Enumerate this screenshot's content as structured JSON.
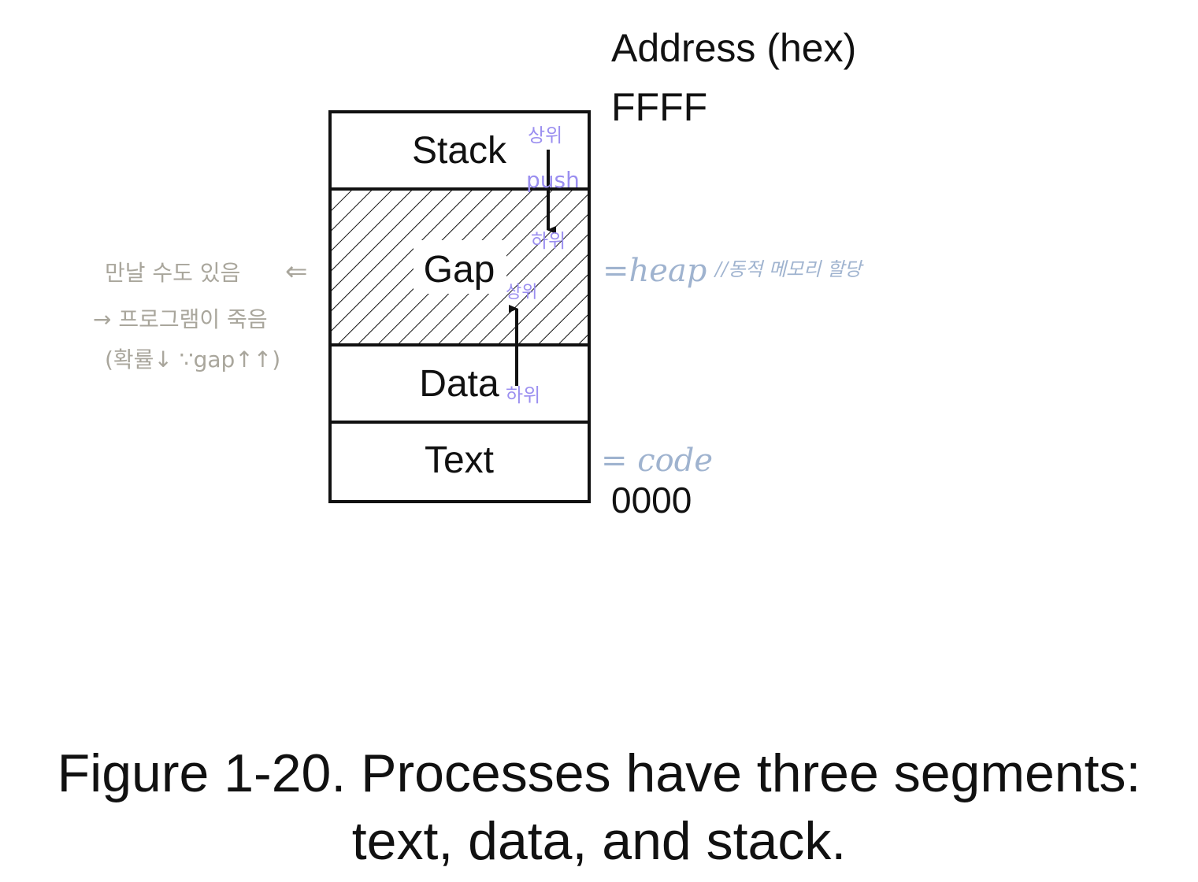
{
  "header": {
    "address_label": "Address (hex)",
    "top_address": "FFFF",
    "bottom_address": "0000"
  },
  "segments": {
    "stack": "Stack",
    "gap": "Gap",
    "data": "Data",
    "text": "Text"
  },
  "annotations": {
    "stack_top": "상위",
    "push": "push",
    "stack_bottom": "하위",
    "data_top": "상위",
    "data_bottom": "하위",
    "heap": "=heap",
    "heap_note": "//동적 메모리 할당",
    "code": "= code",
    "left_line1": "만날 수도 있음",
    "left_arrow": "⇐",
    "left_line2": "→ 프로그램이 죽음",
    "left_line3": "(확률↓ ∵gap↑↑)"
  },
  "caption": {
    "line1": "Figure 1-20. Processes have three segments:",
    "line2": "text, data, and stack."
  },
  "colors": {
    "handwriting_purple": "#9b8ff0",
    "handwriting_blue": "#9fb3cf",
    "handwriting_gray": "#a9a69c"
  }
}
